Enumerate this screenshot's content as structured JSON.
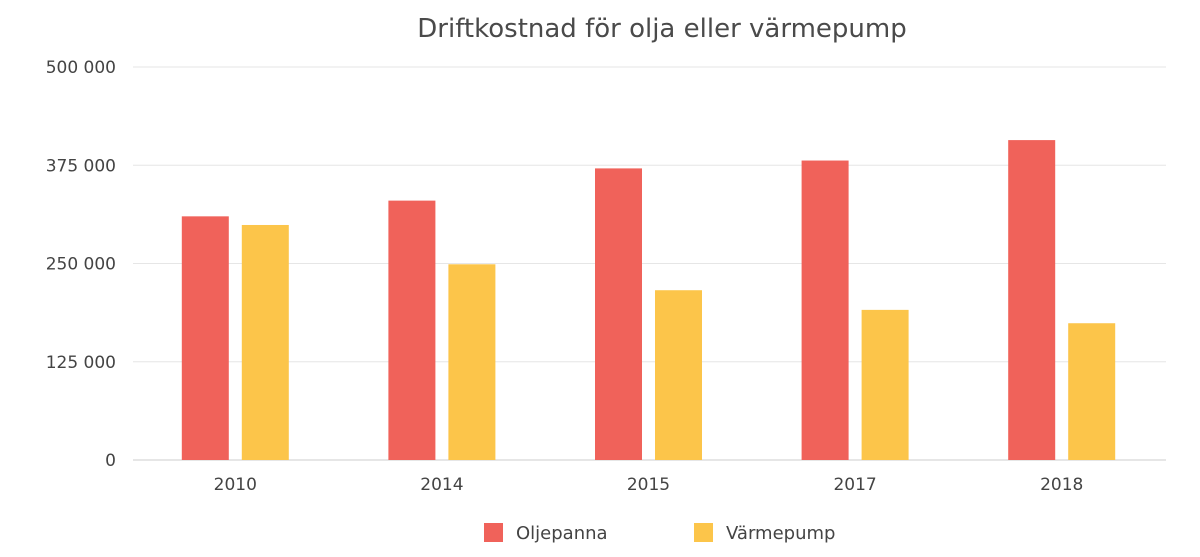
{
  "chart_data": {
    "type": "bar",
    "title": "Driftkostnad för olja eller värmepump",
    "categories": [
      "2010",
      "2014",
      "2015",
      "2017",
      "2018"
    ],
    "series": [
      {
        "name": "Oljepanna",
        "color": "#f0625a",
        "values": [
          310000,
          330000,
          371000,
          381000,
          407000
        ]
      },
      {
        "name": "Värmepump",
        "color": "#fcc54a",
        "values": [
          299000,
          249000,
          216000,
          191000,
          174000
        ]
      }
    ],
    "ylim": [
      0,
      500000
    ],
    "yticks": [
      0,
      125000,
      250000,
      375000,
      500000
    ],
    "ytick_labels": [
      "0",
      "125 000",
      "250 000",
      "375 000",
      "500 000"
    ],
    "grid": true,
    "legend_position": "bottom-center"
  }
}
